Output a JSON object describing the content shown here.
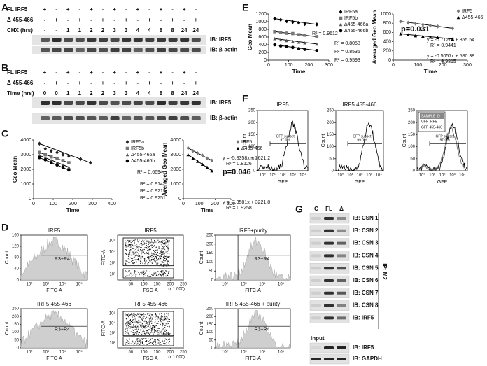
{
  "panels": {
    "A": {
      "label": "A",
      "rows": [
        {
          "name": "FL IRF5",
          "lanes": [
            "+",
            "-",
            "+",
            "-",
            "+",
            "-",
            "+",
            "-",
            "+",
            "-",
            "+",
            "-",
            "+",
            "-"
          ]
        },
        {
          "name": "Δ 455-466",
          "lanes": [
            "-",
            "+",
            "-",
            "+",
            "-",
            "+",
            "-",
            "+",
            "-",
            "+",
            "-",
            "+",
            "-",
            "+"
          ]
        },
        {
          "name": "CHX (hrs)",
          "lanes": [
            "-",
            "-",
            "1",
            "1",
            "2",
            "2",
            "3",
            "3",
            "4",
            "4",
            "8",
            "8",
            "24",
            "24"
          ]
        }
      ],
      "blots": [
        "IB: IRF5",
        "IB: β-actin"
      ]
    },
    "B": {
      "label": "B",
      "rows": [
        {
          "name": "FL IRF5",
          "lanes": [
            "+",
            "-",
            "+",
            "-",
            "+",
            "-",
            "+",
            "-",
            "+",
            "-",
            "+",
            "-",
            "+",
            "-"
          ]
        },
        {
          "name": "Δ 455-466",
          "lanes": [
            "-",
            "+",
            "-",
            "+",
            "-",
            "+",
            "-",
            "+",
            "-",
            "+",
            "-",
            "+",
            "-",
            "+"
          ]
        },
        {
          "name": "Time (hrs)",
          "lanes": [
            "0",
            "0",
            "1",
            "1",
            "2",
            "2",
            "3",
            "3",
            "4",
            "4",
            "8",
            "8",
            "24",
            "24"
          ]
        }
      ],
      "blots": [
        "IB: IRF5",
        "IB: β-actin"
      ]
    },
    "C": {
      "label": "C",
      "charts": [
        {
          "type": "scatter",
          "ylabel": "Geo Mean",
          "xlabel": "Time",
          "xlim": [
            0,
            400
          ],
          "ylim": [
            0,
            4000
          ],
          "xticks": [
            0,
            100,
            200,
            300,
            400
          ],
          "yticks": [
            0,
            1000,
            2000,
            3000,
            4000
          ],
          "series": [
            {
              "name": "IRF5a",
              "color": "#222222",
              "marker": "diamond",
              "x": [
                30,
                60,
                90,
                120,
                150,
                180,
                240,
                290
              ],
              "values": [
                3750,
                3400,
                3250,
                3150,
                3000,
                2900,
                2700,
                2450
              ]
            },
            {
              "name": "IRF5b",
              "color": "#777777",
              "marker": "square",
              "x": [
                30,
                60,
                90,
                120,
                150,
                180
              ],
              "values": [
                3150,
                3000,
                2850,
                2750,
                2600,
                2450
              ]
            },
            {
              "name": "Δ455-466a",
              "color": "#555555",
              "marker": "triangle",
              "x": [
                30,
                60,
                90,
                120,
                150,
                180
              ],
              "values": [
                2950,
                2800,
                2600,
                2450,
                2300,
                2150
              ]
            },
            {
              "name": "Δ455-466b",
              "color": "#000000",
              "marker": "circle",
              "x": [
                30,
                60,
                90,
                120,
                150,
                180
              ],
              "values": [
                2800,
                2650,
                2450,
                2300,
                2150,
                1950
              ]
            }
          ],
          "annotations": [
            "R² = 0.6694",
            "R² = 0.9147",
            "R² = 0.9219",
            "R² = 0.9251"
          ]
        },
        {
          "type": "scatter",
          "ylabel": "Averaged Geo Mean",
          "xlabel": "Time",
          "xlim": [
            0,
            300
          ],
          "ylim": [
            0,
            4000
          ],
          "xticks": [
            0,
            100,
            200,
            300
          ],
          "yticks": [
            0,
            1000,
            2000,
            3000,
            4000
          ],
          "series": [
            {
              "name": "IRF5",
              "color": "#777777",
              "marker": "diamond",
              "x": [
                30,
                60,
                90,
                120,
                150,
                180
              ],
              "values": [
                3450,
                3250,
                3100,
                2950,
                2750,
                2600
              ]
            },
            {
              "name": "Δ455-466",
              "color": "#000000",
              "marker": "triangle",
              "x": [
                30,
                60,
                90,
                120,
                150,
                180
              ],
              "values": [
                3000,
                2750,
                2550,
                2350,
                2150,
                1900
              ]
            }
          ],
          "annotations": [
            "y = -5.8358x + 3621.2",
            "R² = 0.8126",
            "p=0.046",
            "y = -7.3581x + 3221.8",
            "R² = 0.9258"
          ]
        }
      ]
    },
    "D": {
      "label": "D",
      "plots": [
        {
          "title": "IRF5",
          "kind": "hist",
          "ylabel": "Count",
          "xlabel": "FITC-A",
          "ylim": [
            0,
            160
          ],
          "yticks": [
            0,
            40,
            80,
            120,
            160
          ],
          "xtick_labels": [
            "10²",
            "10³",
            "10⁴",
            "10⁵"
          ],
          "gates": [
            "R3+R4"
          ]
        },
        {
          "title": "IRF5",
          "kind": "dot",
          "ylabel": "FITC-A",
          "xlabel": "FSC-A",
          "xlim": [
            0,
            250
          ],
          "xticks": [
            50,
            100,
            150,
            200,
            250
          ],
          "x_unit": "(x 1,000)",
          "ytick_labels": [
            "10²",
            "10³",
            "10⁴",
            "10⁵"
          ],
          "gates": [
            "GFP+",
            "GFP-"
          ]
        },
        {
          "title": "IRF5+purity",
          "kind": "hist",
          "ylabel": "Count",
          "xlabel": "FITC-A",
          "ylim": [
            0,
            250
          ],
          "yticks": [
            0,
            50,
            100,
            150,
            200,
            250
          ],
          "xtick_labels": [
            "10²",
            "10³",
            "10⁴",
            "10⁵"
          ],
          "gates": [
            "R3+R4"
          ]
        },
        {
          "title": "IRF5 455-466",
          "kind": "hist",
          "ylabel": "Count",
          "xlabel": "FITC-A",
          "ylim": [
            0,
            250
          ],
          "yticks": [
            0,
            50,
            100,
            150,
            200,
            250
          ],
          "xtick_labels": [
            "10²",
            "10³",
            "10⁴",
            "10⁵"
          ],
          "gates": [
            "R3+R4"
          ]
        },
        {
          "title": "IRF5 455-466",
          "kind": "dot",
          "ylabel": "FITC-A",
          "xlabel": "FSC-A",
          "xlim": [
            0,
            250
          ],
          "xticks": [
            50,
            100,
            150,
            200,
            250
          ],
          "x_unit": "(x 1,000)",
          "ytick_labels": [
            "10²",
            "10³",
            "10⁴",
            "10⁵"
          ],
          "gates": [
            "GFP+",
            "GFP-"
          ]
        },
        {
          "title": "IRF5 455-466 + purity",
          "kind": "hist",
          "ylabel": "Count",
          "xlabel": "FITC-A",
          "ylim": [
            0,
            250
          ],
          "yticks": [
            0,
            50,
            100,
            150,
            200,
            250
          ],
          "xtick_labels": [
            "10²",
            "10³",
            "10⁴",
            "10⁵"
          ],
          "gates": [
            "R3+R4"
          ]
        }
      ]
    },
    "E": {
      "label": "E",
      "charts": [
        {
          "type": "scatter",
          "ylabel": "Geo Mean",
          "xlabel": "Time",
          "xlim": [
            0,
            300
          ],
          "ylim": [
            0,
            1200
          ],
          "xticks": [
            0,
            100,
            200,
            300
          ],
          "yticks": [
            0,
            200,
            400,
            600,
            800,
            1000,
            1200
          ],
          "series": [
            {
              "name": "IRF5a",
              "color": "#000000",
              "marker": "diamond",
              "x": [
                30,
                60,
                90,
                120,
                150,
                180,
                240
              ],
              "values": [
                1080,
                1050,
                1010,
                990,
                970,
                940,
                930
              ]
            },
            {
              "name": "IRF5b",
              "color": "#777777",
              "marker": "square",
              "x": [
                30,
                60,
                90,
                120,
                150,
                180,
                240
              ],
              "values": [
                740,
                720,
                700,
                690,
                660,
                650,
                610
              ]
            },
            {
              "name": "Δ455-466a",
              "color": "#555555",
              "marker": "triangle",
              "x": [
                30,
                60,
                90,
                120,
                150,
                180,
                240
              ],
              "values": [
                560,
                530,
                510,
                490,
                470,
                450,
                420
              ]
            },
            {
              "name": "Δ455-466b",
              "color": "#000000",
              "marker": "circle",
              "x": [
                30,
                60,
                90,
                120,
                150,
                180,
                240
              ],
              "values": [
                400,
                370,
                350,
                330,
                300,
                280,
                250
              ]
            }
          ],
          "annotations": [
            "R² = 0.9612",
            "R² = 0.8058",
            "R² = 0.8535",
            "R² = 0.9593"
          ]
        },
        {
          "type": "scatter",
          "ylabel": "Averaged Geo Mean",
          "xlabel": "Time",
          "xlim": [
            0,
            300
          ],
          "ylim": [
            0,
            1000
          ],
          "xticks": [
            0,
            100,
            200,
            300
          ],
          "yticks": [
            0,
            200,
            400,
            600,
            800,
            1000
          ],
          "series": [
            {
              "name": "IRF5",
              "color": "#777777",
              "marker": "diamond",
              "x": [
                30,
                60,
                90,
                120,
                150,
                180,
                240
              ],
              "values": [
                840,
                810,
                790,
                770,
                750,
                730,
                690
              ]
            },
            {
              "name": "Δ455-466",
              "color": "#000000",
              "marker": "triangle",
              "x": [
                30,
                60,
                90,
                120,
                150,
                180,
                240
              ],
              "values": [
                570,
                550,
                530,
                520,
                500,
                490,
                460
              ]
            }
          ],
          "annotations": [
            "p=0.031",
            "y = -0.7126x + 855.54",
            "R² = 0.9441",
            "y = -0.5057x + 580.38",
            "R² = 0.9815"
          ]
        }
      ]
    },
    "F": {
      "label": "F",
      "plots": [
        {
          "title": "IRF5",
          "ylabel": "Count",
          "xlabel": "GFP",
          "ylim": [
            0,
            250
          ],
          "yticks": [
            0,
            50,
            100,
            150,
            200,
            250
          ],
          "xtick_labels": [
            "10⁰",
            "10¹",
            "10²",
            "10³",
            "10⁴"
          ],
          "gate": "GFP subset",
          "gate_value": "97.0%"
        },
        {
          "title": "IRF5 455-466",
          "ylabel": "Count",
          "xlabel": "GFP",
          "ylim": [
            0,
            250
          ],
          "yticks": [
            0,
            50,
            100,
            150,
            200,
            250
          ],
          "xtick_labels": [
            "10⁰",
            "10¹",
            "10²",
            "10³",
            "10⁴"
          ],
          "gate": "GFP subset",
          "gate_value": "99.0%"
        },
        {
          "ylabel": "Count",
          "xlabel": "GFP",
          "ylim": [
            0,
            250
          ],
          "yticks": [
            0,
            50,
            100,
            150,
            200,
            250
          ],
          "xtick_labels": [
            "10⁰",
            "10¹",
            "10²",
            "10³",
            "10⁴"
          ],
          "gate": "GFP subset",
          "gate_value": "97.0%",
          "legend": [
            "SAMPLE ID",
            "GFP IRF5",
            "GFP 455-466"
          ]
        }
      ]
    },
    "G": {
      "label": "G",
      "columns": [
        "C",
        "FL",
        "Δ"
      ],
      "ip_blots": [
        "IB: CSN 1",
        "IB: CSN 2",
        "IB: CSN 3",
        "IB: CSN 4",
        "IB: CSN 5",
        "IB: CSN 6",
        "IB: CSN 7",
        "IB: CSN 8",
        "IB: IRF5"
      ],
      "ip_label": "IP: M2",
      "input_label": "input",
      "input_blots": [
        "IB: IRF5",
        "IB: GAPDH"
      ]
    }
  }
}
